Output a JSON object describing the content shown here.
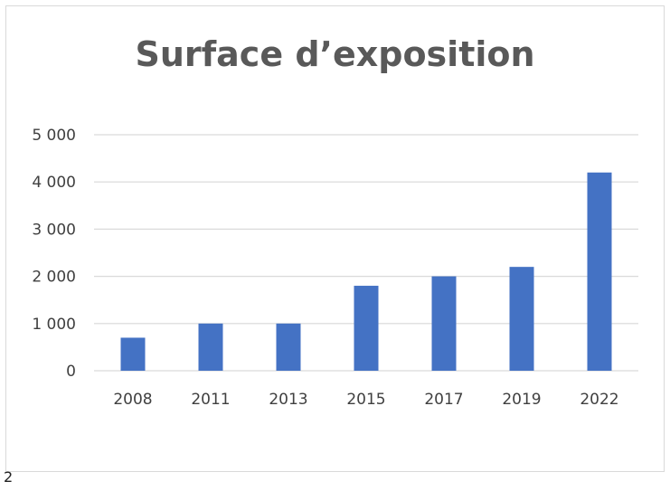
{
  "page": {
    "number": "2"
  },
  "chart_data": {
    "type": "bar",
    "title": "Surface d’exposition",
    "categories": [
      "2008",
      "2011",
      "2013",
      "2015",
      "2017",
      "2019",
      "2022"
    ],
    "values": [
      700,
      1000,
      1000,
      1800,
      2000,
      2200,
      4200
    ],
    "ylim": [
      0,
      5000
    ],
    "yticks": [
      0,
      1000,
      2000,
      3000,
      4000,
      5000
    ],
    "ytick_labels": [
      "0",
      "1 000",
      "2 000",
      "3 000",
      "4 000",
      "5 000"
    ],
    "grid": true,
    "legend": "none",
    "bar_color": "#4472c4",
    "grid_color": "#d9d9d9"
  }
}
